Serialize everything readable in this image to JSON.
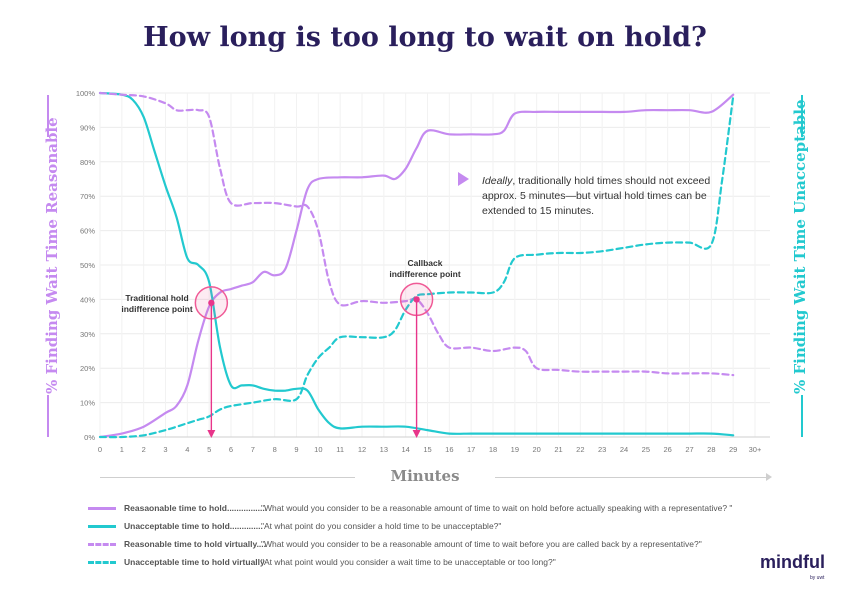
{
  "title": "How long is too long to wait on hold?",
  "y_left_label": "% Finding Wait Time Reasonable",
  "y_right_label": "% Finding Wait Time Unacceptable",
  "x_title": "Minutes",
  "callout": {
    "emphasis": "Ideally",
    "text": ", traditionally hold times should not exceed approx. 5 minutes—but virtual hold times can be extended to 15 minutes."
  },
  "annotations": {
    "traditional": [
      "Traditional hold",
      "indifference point"
    ],
    "callback": [
      "Callback",
      "indifference point"
    ]
  },
  "legend": [
    {
      "name": "Reasaonable time to hold.................",
      "question": "\"What would you consider to be a reasonable amount of time to wait on hold before actually speaking with a representative? \"",
      "color": "#c58af0",
      "dashed": false
    },
    {
      "name": "Unacceptable time to hold..............",
      "question": "\"At what point do you consider a hold time to be unacceptable?\"",
      "color": "#22c9cf",
      "dashed": false
    },
    {
      "name": "Reasonable time to hold virtually....",
      "question": "\"What would you consider to be a reasonable amount of time to wait before you are called back by a representative?\"",
      "color": "#c58af0",
      "dashed": true
    },
    {
      "name": "Unacceptable time to hold virtually",
      "question": "\"At what point would you consider a wait time to be unacceptable or too long?\"",
      "color": "#22c9cf",
      "dashed": true
    }
  ],
  "logo": {
    "name": "mindful",
    "sub": "by uwt"
  },
  "chart_data": {
    "type": "line",
    "title": "How long is too long to wait on hold?",
    "xlabel": "Minutes",
    "ylabel": "% Finding Wait Time Reasonable",
    "ylabel_right": "% Finding Wait Time Unacceptable",
    "x_ticks": [
      "0",
      "1",
      "2",
      "3",
      "4",
      "5",
      "6",
      "7",
      "8",
      "9",
      "10",
      "11",
      "12",
      "13",
      "14",
      "15",
      "16",
      "17",
      "18",
      "19",
      "20",
      "21",
      "22",
      "23",
      "24",
      "25",
      "26",
      "27",
      "28",
      "29",
      "30+"
    ],
    "y_ticks": [
      "0%",
      "10%",
      "20%",
      "30%",
      "40%",
      "50%",
      "60%",
      "70%",
      "80%",
      "90%",
      "100%"
    ],
    "xlim": [
      0,
      30
    ],
    "ylim": [
      0,
      100
    ],
    "grid": true,
    "series": [
      {
        "name": "Reasaonable time to hold",
        "color": "#c58af0",
        "dashed": false,
        "x": [
          0,
          1,
          2,
          3,
          3.5,
          4,
          4.5,
          5,
          5.5,
          6,
          6.5,
          7,
          7.5,
          8,
          8.5,
          9,
          9.5,
          10,
          11,
          12,
          13,
          13.5,
          14,
          14.5,
          15,
          16,
          17,
          18,
          18.5,
          19,
          20,
          21,
          22,
          23,
          24,
          25,
          26,
          27,
          28,
          29
        ],
        "y": [
          0,
          1,
          3,
          7,
          9,
          15,
          28,
          38,
          42,
          43,
          44,
          45,
          48,
          47,
          49,
          60,
          72,
          75,
          75.5,
          75.5,
          76,
          75,
          78,
          84,
          89,
          88,
          88,
          88,
          89,
          94,
          94.5,
          94.5,
          94.5,
          94.5,
          94.5,
          95,
          95,
          95,
          94.5,
          99.5
        ]
      },
      {
        "name": "Unacceptable time to hold",
        "color": "#22c9cf",
        "dashed": false,
        "x": [
          0,
          1,
          1.5,
          2,
          2.5,
          3,
          3.5,
          4,
          4.5,
          5,
          5.5,
          6,
          6.5,
          7,
          7.5,
          8,
          8.5,
          9,
          9.5,
          10,
          10.5,
          11,
          12,
          13,
          14,
          15,
          16,
          17,
          18,
          19,
          20,
          21,
          22,
          23,
          24,
          25,
          26,
          27,
          28,
          29
        ],
        "y": [
          100,
          99.5,
          98,
          93,
          83,
          73,
          64,
          52,
          50,
          45,
          26,
          15,
          15,
          15,
          14,
          13.5,
          13.5,
          14,
          13.5,
          8,
          4,
          2.5,
          3,
          3,
          3,
          2,
          1,
          1,
          1,
          1,
          1,
          1,
          1,
          1,
          1,
          1,
          1,
          1,
          1,
          0.5
        ]
      },
      {
        "name": "Reasonable time to hold virtually",
        "color": "#c58af0",
        "dashed": true,
        "x": [
          0,
          1,
          2,
          3,
          3.5,
          4,
          4.5,
          5,
          5.5,
          6,
          7,
          8,
          9,
          9.5,
          10,
          10.5,
          11,
          12,
          13,
          14,
          14.5,
          15,
          15.5,
          16,
          17,
          18,
          19,
          19.5,
          20,
          21,
          22,
          23,
          24,
          25,
          26,
          27,
          28,
          29
        ],
        "y": [
          100,
          99.5,
          99,
          97,
          95,
          95,
          95,
          93,
          78,
          68,
          68,
          68,
          67,
          67,
          60,
          45,
          38.5,
          39.5,
          39,
          39.5,
          40,
          36,
          30,
          26,
          26,
          25,
          26,
          25,
          20,
          19.5,
          19,
          19,
          19,
          19,
          18.5,
          18.5,
          18.5,
          18
        ]
      },
      {
        "name": "Unacceptable time to hold virtually",
        "color": "#22c9cf",
        "dashed": true,
        "x": [
          0,
          1,
          2,
          3,
          4,
          4.5,
          5,
          5.5,
          6,
          7,
          8,
          9,
          9.5,
          10,
          10.5,
          11,
          12,
          13,
          13.5,
          14,
          14.5,
          15,
          16,
          17,
          18,
          18.5,
          19,
          20,
          21,
          22,
          23,
          24,
          25,
          26,
          27,
          28,
          28.5,
          29
        ],
        "y": [
          0,
          0,
          0.5,
          2,
          4,
          5,
          6,
          8,
          9,
          10,
          11,
          11,
          18,
          23,
          26,
          29,
          29,
          29,
          31,
          37,
          41,
          41.5,
          42,
          42,
          42,
          45,
          52,
          53,
          53.5,
          53.5,
          54,
          55,
          56,
          56.5,
          56.5,
          56,
          75,
          99
        ]
      }
    ],
    "indifference_points": [
      {
        "label": "Traditional hold indifference point",
        "x": 5.1,
        "y": 39
      },
      {
        "label": "Callback indifference point",
        "x": 14.5,
        "y": 40
      }
    ]
  }
}
